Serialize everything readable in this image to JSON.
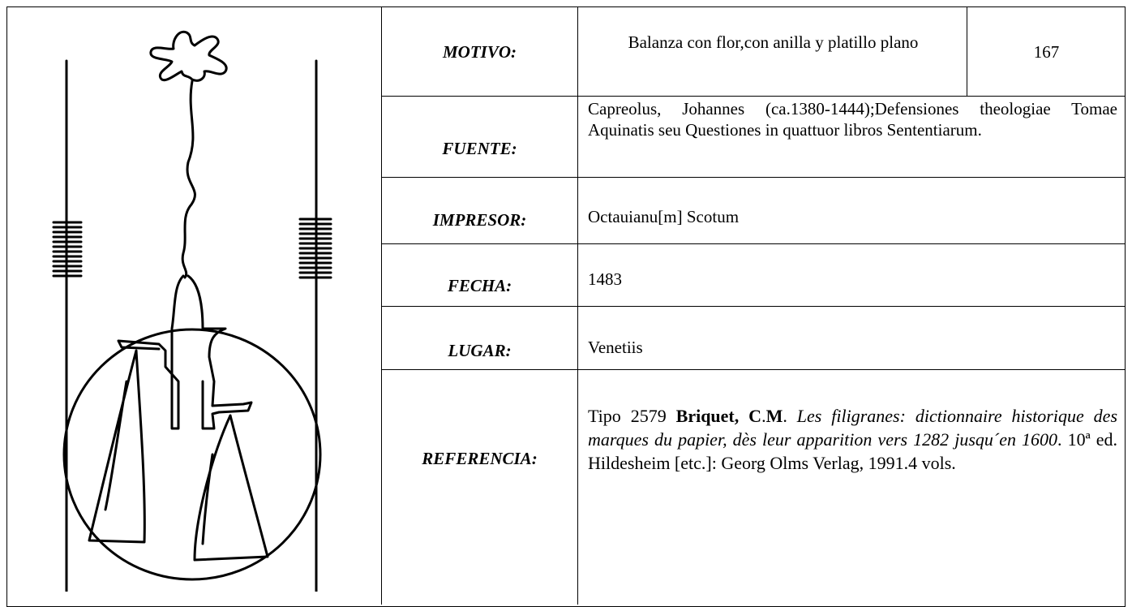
{
  "table": {
    "rows": [
      {
        "label": "MOTIVO:",
        "value": "Balanza con flor,con anilla y platillo plano",
        "number": "167"
      },
      {
        "label": "FUENTE:",
        "value": "Capreolus, Johannes (ca.1380-1444);Defensiones theologiae Tomae Aquinatis seu Questiones in quattuor libros Sententiarum."
      },
      {
        "label": "IMPRESOR:",
        "value": "Octauianu[m] Scotum"
      },
      {
        "label": "FECHA:",
        "value": "1483"
      },
      {
        "label": "LUGAR:",
        "value": "Venetiis"
      },
      {
        "label": "REFERENCIA:",
        "value": [
          "Tipo 2579 ",
          "Briquet, C",
          ".",
          "M",
          ". ",
          "Les filigranes: dictionnaire historique des marques du papier, dès leur apparition vers 1282 jusqu´en 1600",
          ". 10ª ed. Hildesheim [etc.]: Georg Olms Verlag, 1991.4 vols."
        ]
      }
    ]
  }
}
